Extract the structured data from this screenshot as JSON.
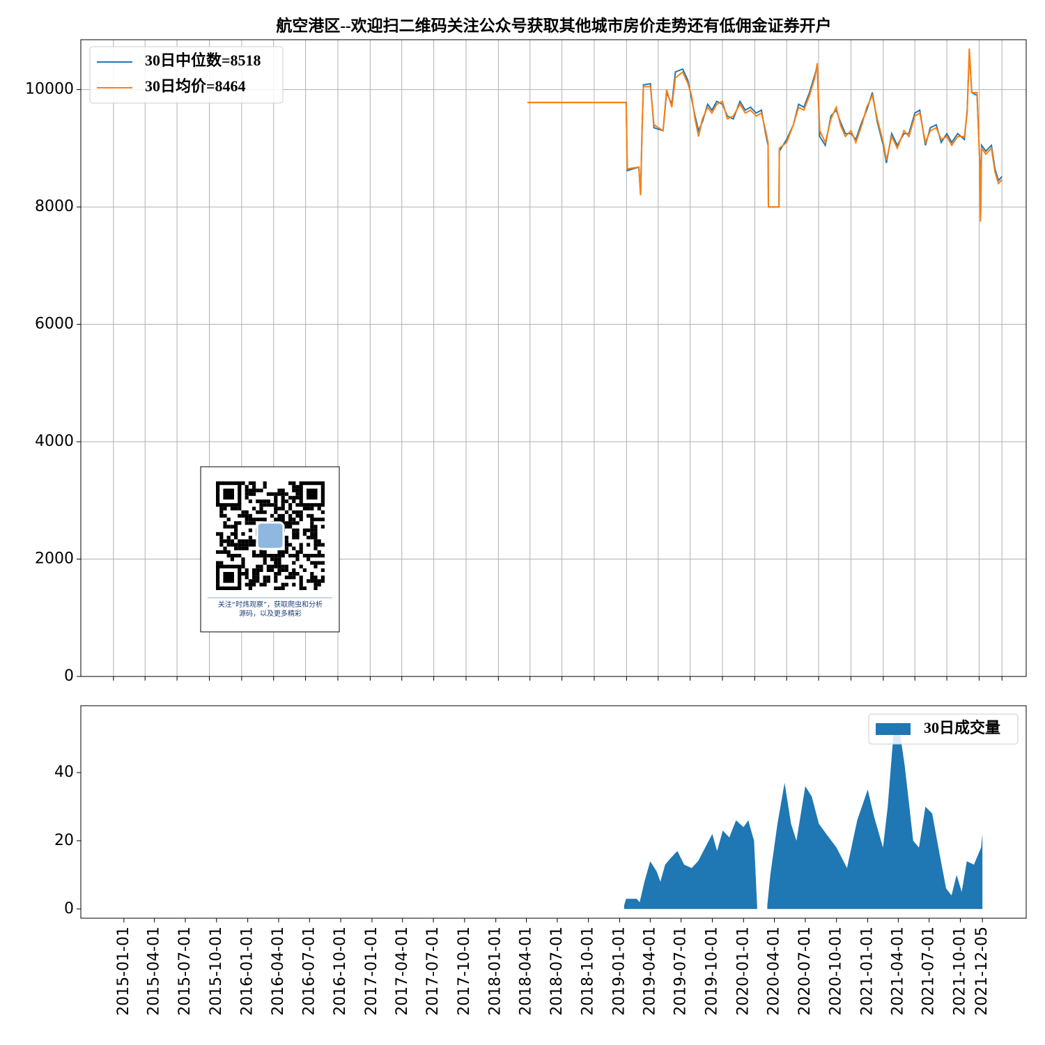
{
  "chart_data": [
    {
      "type": "line",
      "title": "航空港区--欢迎扫二维码关注公众号获取其他城市房价走势还有低佣金证券开户",
      "annotations": [
        "关注“时炜观察”，获取爬虫和分析",
        "源码，以及更多精彩"
      ],
      "x": [
        "2018-03-25",
        "2018-12-31",
        "2019-01-03",
        "2019-02-05",
        "2019-02-10",
        "2019-02-14",
        "2019-02-18",
        "2019-03-10",
        "2019-03-20",
        "2019-04-15",
        "2019-04-25",
        "2019-05-10",
        "2019-05-20",
        "2019-06-10",
        "2019-06-25",
        "2019-07-05",
        "2019-07-15",
        "2019-07-25",
        "2019-08-05",
        "2019-08-20",
        "2019-09-01",
        "2019-09-15",
        "2019-10-01",
        "2019-10-15",
        "2019-11-01",
        "2019-11-20",
        "2019-12-05",
        "2019-12-20",
        "2020-01-05",
        "2020-01-20",
        "2020-02-01",
        "2020-02-08",
        "2020-02-09",
        "2020-03-10",
        "2020-03-11",
        "2020-04-01",
        "2020-04-20",
        "2020-05-05",
        "2020-05-20",
        "2020-06-05",
        "2020-06-20",
        "2020-06-27",
        "2020-07-04",
        "2020-07-20",
        "2020-08-05",
        "2020-08-20",
        "2020-09-01",
        "2020-09-15",
        "2020-10-01",
        "2020-10-15",
        "2020-11-01",
        "2020-11-15",
        "2020-12-01",
        "2020-12-15",
        "2021-01-01",
        "2021-01-10",
        "2021-01-25",
        "2021-02-10",
        "2021-03-01",
        "2021-03-15",
        "2021-04-01",
        "2021-04-15",
        "2021-05-01",
        "2021-05-15",
        "2021-06-01",
        "2021-06-15",
        "2021-07-01",
        "2021-07-15",
        "2021-08-01",
        "2021-08-20",
        "2021-08-28",
        "2021-09-03",
        "2021-09-10",
        "2021-09-25",
        "2021-10-03",
        "2021-10-05",
        "2021-10-08",
        "2021-10-20",
        "2021-11-05",
        "2021-11-15",
        "2021-11-25",
        "2021-12-05"
      ],
      "series": [
        {
          "name": "30日中位数=8518",
          "color": "#1f77b4",
          "values": [
            9780,
            9780,
            8620,
            8680,
            8200,
            9250,
            10080,
            10100,
            9350,
            9300,
            9950,
            9750,
            10300,
            10350,
            10150,
            9850,
            9550,
            9300,
            9450,
            9750,
            9650,
            9800,
            9750,
            9550,
            9500,
            9800,
            9650,
            9700,
            9600,
            9650,
            9250,
            9050,
            8000,
            8000,
            8950,
            9150,
            9400,
            9750,
            9700,
            9950,
            10250,
            10400,
            9200,
            9050,
            9550,
            9650,
            9450,
            9250,
            9250,
            9150,
            9450,
            9650,
            9950,
            9450,
            9050,
            8750,
            9250,
            9050,
            9250,
            9250,
            9600,
            9650,
            9050,
            9350,
            9400,
            9100,
            9250,
            9100,
            9250,
            9150,
            9650,
            10650,
            9950,
            9900,
            8750,
            7800,
            9050,
            8950,
            9050,
            8650,
            8450,
            8518
          ]
        },
        {
          "name": "30日均价=8464",
          "color": "#ff7f0e",
          "values": [
            9780,
            9780,
            8650,
            8680,
            8200,
            9300,
            10050,
            10050,
            9400,
            9300,
            10000,
            9700,
            10200,
            10300,
            10100,
            9900,
            9500,
            9200,
            9500,
            9700,
            9600,
            9750,
            9800,
            9500,
            9550,
            9750,
            9600,
            9650,
            9550,
            9600,
            9300,
            9100,
            8000,
            8000,
            9000,
            9100,
            9400,
            9700,
            9650,
            9900,
            10200,
            10450,
            9300,
            9100,
            9500,
            9700,
            9400,
            9200,
            9300,
            9100,
            9400,
            9700,
            9900,
            9500,
            9100,
            8800,
            9200,
            9000,
            9300,
            9200,
            9550,
            9600,
            9100,
            9300,
            9350,
            9150,
            9200,
            9050,
            9200,
            9200,
            9600,
            10700,
            9950,
            9950,
            8700,
            7750,
            9000,
            8900,
            9000,
            8600,
            8400,
            8464
          ]
        }
      ],
      "xlim": [
        "2014-09-30",
        "2022-02-12"
      ],
      "xticks": [
        "2015-01-01",
        "2015-04-01",
        "2015-07-01",
        "2015-10-01",
        "2016-01-01",
        "2016-04-01",
        "2016-07-01",
        "2016-10-01",
        "2017-01-01",
        "2017-04-01",
        "2017-07-01",
        "2017-10-01",
        "2018-01-01",
        "2018-04-01",
        "2018-07-01",
        "2018-10-01",
        "2019-01-01",
        "2019-04-01",
        "2019-07-01",
        "2019-10-01",
        "2020-01-01",
        "2020-04-01",
        "2020-07-01",
        "2020-10-01",
        "2021-01-01",
        "2021-04-01",
        "2021-07-01",
        "2021-10-01",
        "2021-12-05"
      ],
      "ylim": [
        0,
        10850
      ],
      "yticks": [
        0,
        2000,
        4000,
        6000,
        8000,
        10000
      ],
      "grid": true,
      "legend": "upper left"
    },
    {
      "type": "area",
      "x": [
        "2019-01-14",
        "2019-01-20",
        "2019-02-20",
        "2019-03-01",
        "2019-03-15",
        "2019-04-01",
        "2019-04-20",
        "2019-05-01",
        "2019-05-15",
        "2019-06-01",
        "2019-06-20",
        "2019-07-10",
        "2019-08-01",
        "2019-08-20",
        "2019-09-10",
        "2019-10-01",
        "2019-10-15",
        "2019-11-01",
        "2019-11-20",
        "2019-12-10",
        "2020-01-01",
        "2020-01-15",
        "2020-02-01",
        "2020-02-10",
        "2020-02-25",
        "2020-03-11",
        "2020-03-20",
        "2020-04-10",
        "2020-05-01",
        "2020-05-20",
        "2020-06-05",
        "2020-07-01",
        "2020-07-20",
        "2020-08-10",
        "2020-09-01",
        "2020-10-01",
        "2020-11-01",
        "2020-12-01",
        "2021-01-01",
        "2021-01-20",
        "2021-02-15",
        "2021-03-01",
        "2021-03-20",
        "2021-04-01",
        "2021-04-20",
        "2021-05-15",
        "2021-06-01",
        "2021-06-20",
        "2021-07-10",
        "2021-08-01",
        "2021-08-20",
        "2021-09-05",
        "2021-09-20",
        "2021-10-05",
        "2021-10-20",
        "2021-11-10",
        "2021-12-01",
        "2021-12-05"
      ],
      "series": [
        {
          "name": "30日成交量",
          "color": "#1f77b4",
          "values": [
            1,
            3,
            3,
            2,
            8,
            14,
            11,
            8,
            13,
            15,
            17,
            13,
            12,
            14,
            18,
            22,
            17,
            23,
            21,
            26,
            24,
            26,
            20,
            1,
            null,
            1,
            10,
            25,
            37,
            25,
            20,
            36,
            33,
            25,
            22,
            18,
            12,
            26,
            35,
            27,
            18,
            30,
            54,
            55,
            42,
            20,
            18,
            30,
            28,
            16,
            6,
            4,
            10,
            5,
            14,
            13,
            18,
            22
          ]
        }
      ],
      "xlim": [
        "2014-08-27",
        "2022-04-13"
      ],
      "xticks": [
        "2015-01-01",
        "2015-04-01",
        "2015-07-01",
        "2015-10-01",
        "2016-01-01",
        "2016-04-01",
        "2016-07-01",
        "2016-10-01",
        "2017-01-01",
        "2017-04-01",
        "2017-07-01",
        "2017-10-01",
        "2018-01-01",
        "2018-04-01",
        "2018-07-01",
        "2018-10-01",
        "2019-01-01",
        "2019-04-01",
        "2019-07-01",
        "2019-10-01",
        "2020-01-01",
        "2020-04-01",
        "2020-07-01",
        "2020-10-01",
        "2021-01-01",
        "2021-04-01",
        "2021-07-01",
        "2021-10-01",
        "2021-12-05"
      ],
      "ylim": [
        -2.7,
        59.6
      ],
      "yticks": [
        0,
        20,
        40
      ],
      "grid": false,
      "legend": "upper right"
    }
  ]
}
